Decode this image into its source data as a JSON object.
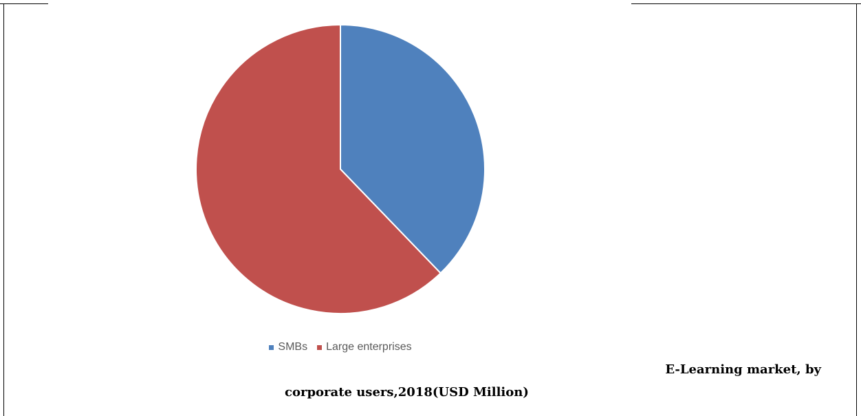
{
  "chart_data": {
    "type": "pie",
    "title": "",
    "slices": [
      {
        "label": "SMBs",
        "value": 37.8,
        "color": "#4f81bd"
      },
      {
        "label": "Large enterprises",
        "value": 62.2,
        "color": "#c0504d"
      }
    ],
    "legend_position": "bottom",
    "start_angle_deg": 0,
    "direction": "clockwise"
  },
  "caption": {
    "line1": "E-Learning market, by",
    "line2": "corporate users,2018(USD Million)"
  }
}
